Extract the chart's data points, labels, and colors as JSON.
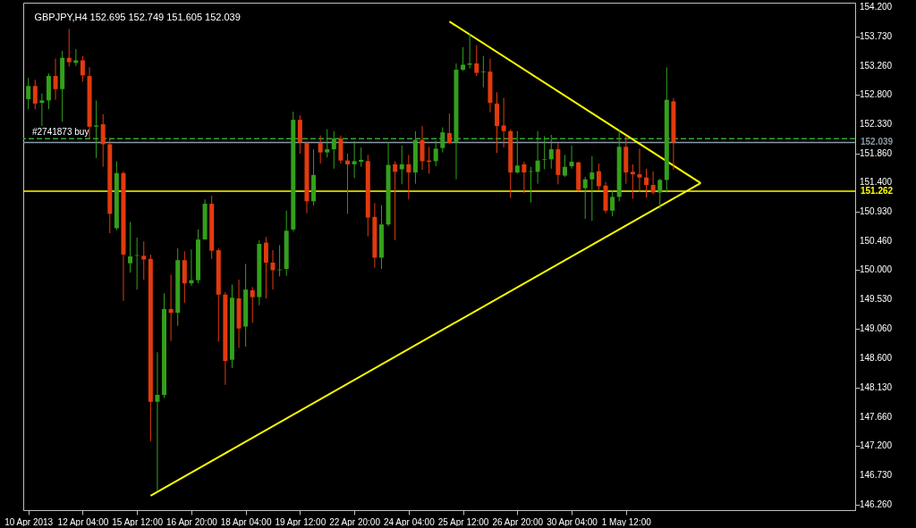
{
  "chart_data": {
    "type": "candlestick",
    "title": "GBPJPY,H4  152.695 152.749 151.605 152.039",
    "categories": [
      "10 Apr 2013",
      null,
      null,
      null,
      null,
      null,
      null,
      null,
      "12 Apr 04:00",
      null,
      null,
      null,
      null,
      null,
      null,
      null,
      "15 Apr 12:00",
      null,
      null,
      null,
      null,
      null,
      null,
      null,
      "16 Apr 20:00",
      null,
      null,
      null,
      null,
      null,
      null,
      null,
      "18 Apr 04:00",
      null,
      null,
      null,
      null,
      null,
      null,
      null,
      "19 Apr 12:00",
      null,
      null,
      null,
      null,
      null,
      null,
      null,
      "22 Apr 20:00",
      null,
      null,
      null,
      null,
      null,
      null,
      null,
      "24 Apr 04:00",
      null,
      null,
      null,
      null,
      null,
      null,
      null,
      "25 Apr 12:00",
      null,
      null,
      null,
      null,
      null,
      null,
      null,
      "26 Apr 20:00",
      null,
      null,
      null,
      null,
      null,
      null,
      null,
      "30 Apr 04:00",
      null,
      null,
      null,
      null,
      null,
      null,
      null,
      "1 May 12:00",
      null,
      null,
      null,
      null,
      null,
      null,
      null,
      null,
      null,
      null,
      null,
      null,
      null,
      null,
      null,
      null,
      null,
      null,
      null,
      null,
      null,
      null,
      null,
      null,
      null,
      null,
      null,
      null,
      null,
      null,
      null,
      null,
      null
    ],
    "ohlc": [
      [
        152.73,
        153.07,
        152.57,
        152.94
      ],
      [
        152.94,
        153.04,
        152.57,
        152.66
      ],
      [
        152.67,
        152.82,
        152.3,
        152.71
      ],
      [
        152.71,
        153.14,
        152.57,
        153.1
      ],
      [
        153.1,
        153.38,
        152.72,
        152.89
      ],
      [
        152.89,
        153.5,
        152.37,
        153.39
      ],
      [
        153.39,
        153.85,
        153.25,
        153.32
      ],
      [
        153.31,
        153.53,
        153.26,
        153.35
      ],
      [
        153.35,
        153.42,
        153.01,
        153.11
      ],
      [
        153.1,
        153.24,
        152.1,
        152.29
      ],
      [
        152.29,
        152.71,
        151.79,
        152.31
      ],
      [
        152.33,
        152.49,
        151.65,
        152.01
      ],
      [
        152.01,
        152.09,
        150.59,
        150.9
      ],
      [
        150.67,
        151.74,
        150.64,
        151.55
      ],
      [
        151.55,
        151.58,
        149.51,
        150.25
      ],
      [
        150.11,
        150.77,
        149.96,
        150.22
      ],
      [
        150.23,
        150.52,
        149.69,
        150.24
      ],
      [
        150.23,
        150.46,
        149.85,
        150.17
      ],
      [
        150.18,
        150.25,
        147.27,
        147.9
      ],
      [
        147.9,
        148.69,
        146.48,
        148.01
      ],
      [
        148.01,
        149.63,
        147.96,
        149.38
      ],
      [
        149.38,
        149.93,
        148.87,
        149.32
      ],
      [
        149.32,
        150.35,
        149.11,
        150.16
      ],
      [
        150.16,
        150.3,
        149.48,
        149.79
      ],
      [
        149.79,
        150.33,
        149.75,
        149.84
      ],
      [
        149.84,
        150.65,
        149.79,
        150.49
      ],
      [
        150.49,
        151.13,
        150.49,
        151.06
      ],
      [
        151.06,
        151.19,
        150.18,
        150.31
      ],
      [
        150.32,
        150.35,
        148.86,
        149.61
      ],
      [
        149.61,
        149.65,
        148.17,
        148.55
      ],
      [
        148.57,
        149.77,
        148.44,
        149.56
      ],
      [
        149.55,
        149.85,
        148.76,
        149.07
      ],
      [
        149.1,
        150.1,
        148.78,
        149.69
      ],
      [
        149.68,
        149.73,
        149.16,
        149.57
      ],
      [
        149.57,
        150.48,
        149.44,
        150.42
      ],
      [
        150.44,
        150.53,
        149.55,
        150.12
      ],
      [
        150.12,
        150.32,
        149.69,
        150.0
      ],
      [
        150.0,
        150.4,
        149.9,
        150.01
      ],
      [
        150.02,
        150.95,
        149.91,
        150.63
      ],
      [
        150.65,
        152.53,
        150.62,
        152.4
      ],
      [
        152.4,
        152.47,
        151.86,
        152.04
      ],
      [
        152.03,
        152.05,
        150.91,
        151.1
      ],
      [
        151.1,
        151.93,
        151.03,
        151.52
      ],
      [
        152.03,
        152.15,
        151.7,
        151.88
      ],
      [
        151.88,
        152.25,
        151.8,
        151.93
      ],
      [
        151.93,
        152.22,
        151.62,
        152.1
      ],
      [
        152.1,
        152.15,
        151.7,
        151.75
      ],
      [
        151.75,
        151.86,
        150.9,
        151.69
      ],
      [
        151.69,
        152.06,
        151.47,
        151.74
      ],
      [
        151.73,
        151.96,
        151.65,
        151.76
      ],
      [
        151.74,
        151.84,
        150.54,
        150.84
      ],
      [
        150.85,
        151.07,
        150.04,
        150.2
      ],
      [
        150.2,
        151.04,
        150.02,
        150.73
      ],
      [
        150.73,
        152.04,
        150.7,
        151.68
      ],
      [
        151.69,
        151.74,
        150.48,
        151.57
      ],
      [
        151.61,
        151.99,
        151.37,
        151.69
      ],
      [
        151.69,
        151.84,
        151.13,
        151.56
      ],
      [
        151.56,
        152.22,
        151.38,
        152.08
      ],
      [
        152.08,
        152.3,
        151.6,
        151.74
      ],
      [
        151.75,
        151.97,
        151.54,
        151.73
      ],
      [
        151.74,
        152.07,
        151.66,
        151.94
      ],
      [
        151.95,
        152.28,
        151.88,
        152.2
      ],
      [
        152.19,
        152.5,
        152.02,
        152.03
      ],
      [
        152.04,
        153.3,
        151.45,
        153.2
      ],
      [
        153.2,
        153.56,
        153.18,
        153.28
      ],
      [
        153.28,
        153.77,
        153.22,
        153.3
      ],
      [
        153.3,
        153.59,
        153.1,
        153.15
      ],
      [
        153.16,
        153.42,
        152.92,
        153.17
      ],
      [
        153.17,
        153.38,
        152.52,
        152.67
      ],
      [
        152.66,
        152.84,
        151.87,
        152.3
      ],
      [
        152.31,
        152.75,
        151.96,
        152.22
      ],
      [
        152.22,
        152.25,
        151.15,
        151.56
      ],
      [
        151.56,
        152.22,
        151.54,
        151.67
      ],
      [
        151.69,
        151.73,
        151.23,
        151.56
      ],
      [
        151.57,
        151.65,
        151.08,
        151.58
      ],
      [
        151.57,
        152.22,
        151.38,
        151.75
      ],
      [
        151.76,
        152.14,
        151.61,
        151.77
      ],
      [
        151.77,
        152.16,
        151.62,
        151.93
      ],
      [
        151.93,
        152.03,
        151.37,
        151.52
      ],
      [
        151.51,
        151.84,
        151.49,
        151.65
      ],
      [
        151.66,
        151.99,
        151.62,
        151.73
      ],
      [
        151.72,
        151.73,
        151.26,
        151.28
      ],
      [
        151.31,
        151.49,
        150.82,
        151.45
      ],
      [
        151.45,
        151.82,
        150.79,
        151.56
      ],
      [
        151.58,
        151.7,
        151.28,
        151.34
      ],
      [
        151.35,
        151.41,
        150.91,
        150.95
      ],
      [
        150.95,
        151.27,
        150.86,
        151.17
      ],
      [
        151.17,
        152.25,
        151.1,
        151.97
      ],
      [
        151.97,
        152.15,
        151.38,
        151.56
      ],
      [
        151.57,
        151.69,
        151.14,
        151.53
      ],
      [
        151.53,
        151.94,
        151.25,
        151.48
      ],
      [
        151.48,
        151.62,
        151.16,
        151.36
      ],
      [
        151.36,
        151.58,
        151.21,
        151.24
      ],
      [
        151.24,
        151.46,
        150.98,
        151.44
      ],
      [
        151.44,
        153.24,
        151.24,
        152.72
      ],
      [
        152.695,
        152.749,
        151.605,
        152.039
      ],
      null,
      null,
      null,
      null,
      null,
      null,
      null,
      null,
      null,
      null,
      null,
      null,
      null,
      null,
      null,
      null,
      null,
      null,
      null,
      null,
      null,
      null,
      null,
      null,
      null,
      null
    ],
    "colors": [
      "#33a01c",
      "#e23a0e",
      "#33a01c",
      "#33a01c",
      "#e23a0e",
      "#33a01c",
      "#e23a0e",
      "#33a01c",
      "#e23a0e",
      "#e23a0e",
      "#33a01c",
      "#e23a0e",
      "#e23a0e",
      "#33a01c",
      "#e23a0e",
      "#33a01c",
      "#33a01c",
      "#e23a0e",
      "#e23a0e",
      "#33a01c",
      "#33a01c",
      "#e23a0e",
      "#33a01c",
      "#e23a0e",
      "#33a01c",
      "#33a01c",
      "#33a01c",
      "#e23a0e",
      "#e23a0e",
      "#e23a0e",
      "#33a01c",
      "#e23a0e",
      "#33a01c",
      "#e23a0e",
      "#33a01c",
      "#e23a0e",
      "#e23a0e",
      "#33a01c",
      "#33a01c",
      "#33a01c",
      "#e23a0e",
      "#e23a0e",
      "#33a01c",
      "#e23a0e",
      "#33a01c",
      "#33a01c",
      "#e23a0e",
      "#e23a0e",
      "#33a01c",
      "#33a01c",
      "#e23a0e",
      "#e23a0e",
      "#33a01c",
      "#33a01c",
      "#e23a0e",
      "#33a01c",
      "#e23a0e",
      "#33a01c",
      "#e23a0e",
      "#e23a0e",
      "#33a01c",
      "#33a01c",
      "#e23a0e",
      "#33a01c",
      "#33a01c",
      "#33a01c",
      "#e23a0e",
      "#33a01c",
      "#e23a0e",
      "#e23a0e",
      "#e23a0e",
      "#e23a0e",
      "#33a01c",
      "#e23a0e",
      "#33a01c",
      "#33a01c",
      "#33a01c",
      "#33a01c",
      "#e23a0e",
      "#33a01c",
      "#33a01c",
      "#e23a0e",
      "#33a01c",
      "#33a01c",
      "#e23a0e",
      "#e23a0e",
      "#33a01c",
      "#33a01c",
      "#e23a0e",
      "#e23a0e",
      "#e23a0e",
      "#e23a0e",
      "#e23a0e",
      "#33a01c",
      "#33a01c",
      "#e23a0e",
      null,
      null,
      null,
      null,
      null,
      null,
      null,
      null,
      null,
      null,
      null,
      null,
      null,
      null,
      null,
      null,
      null,
      null,
      null,
      null,
      null,
      null,
      null,
      null,
      null,
      null
    ],
    "series": [
      {
        "type": "line",
        "color": "#ffff00",
        "values": [
          null,
          null,
          null,
          null,
          null,
          null,
          null,
          null,
          null,
          null,
          null,
          null,
          null,
          null,
          null,
          null,
          null,
          null,
          null,
          null,
          null,
          null,
          null,
          null,
          null,
          null,
          null,
          null,
          null,
          null,
          null,
          null,
          null,
          null,
          null,
          null,
          null,
          null,
          null,
          null,
          null,
          null,
          null,
          null,
          null,
          null,
          null,
          null,
          null,
          null,
          null,
          null,
          null,
          null,
          null,
          null,
          null,
          null,
          null,
          null,
          null,
          null,
          153.97,
          null,
          null,
          null,
          null,
          null,
          null,
          null,
          null,
          null,
          null,
          null,
          null,
          null,
          null,
          null,
          null,
          null,
          null,
          null,
          null,
          null,
          null,
          null,
          null,
          null,
          null,
          null,
          null,
          null,
          null,
          null,
          null,
          null,
          null,
          null,
          null,
          151.39,
          null,
          null,
          null,
          null,
          null,
          null,
          null,
          null,
          null,
          null,
          null,
          null,
          null,
          null,
          null,
          null,
          null,
          null,
          null,
          null,
          null,
          null
        ]
      },
      {
        "type": "line",
        "color": "#ffff00",
        "values": [
          null,
          null,
          null,
          null,
          null,
          null,
          null,
          null,
          null,
          null,
          null,
          null,
          null,
          null,
          null,
          null,
          null,
          null,
          146.4,
          null,
          null,
          null,
          null,
          null,
          null,
          null,
          null,
          null,
          null,
          null,
          null,
          null,
          null,
          null,
          null,
          null,
          null,
          null,
          null,
          null,
          null,
          null,
          null,
          null,
          null,
          null,
          null,
          null,
          null,
          null,
          null,
          null,
          null,
          null,
          null,
          null,
          null,
          null,
          null,
          null,
          null,
          null,
          null,
          null,
          null,
          null,
          null,
          null,
          null,
          null,
          null,
          null,
          null,
          null,
          null,
          null,
          null,
          null,
          null,
          null,
          null,
          null,
          null,
          null,
          null,
          null,
          null,
          null,
          null,
          null,
          null,
          null,
          null,
          null,
          null,
          null,
          null,
          null,
          null,
          151.39,
          null,
          null,
          null,
          null,
          null,
          null,
          null,
          null,
          null,
          null,
          null,
          null,
          null,
          null,
          null,
          null,
          null,
          null,
          null,
          null,
          null,
          null
        ]
      }
    ],
    "ylim": [
      146.17,
      154.27
    ],
    "yticks": [
      {
        "value": 154.2,
        "label": "154.200"
      },
      {
        "value": 153.73,
        "label": "153.730"
      },
      {
        "value": 153.26,
        "label": "153.260"
      },
      {
        "value": 152.8,
        "label": "152.800"
      },
      {
        "value": 152.33,
        "label": "152.330"
      },
      {
        "value": 151.86,
        "label": "151.860"
      },
      {
        "value": 151.4,
        "label": "151.400"
      },
      {
        "value": 150.93,
        "label": "150.930"
      },
      {
        "value": 150.46,
        "label": "150.460"
      },
      {
        "value": 150,
        "label": "150.000"
      },
      {
        "value": 149.53,
        "label": "149.530"
      },
      {
        "value": 149.06,
        "label": "149.060"
      },
      {
        "value": 148.6,
        "label": "148.600"
      },
      {
        "value": 148.13,
        "label": "148.130"
      },
      {
        "value": 147.66,
        "label": "147.660"
      },
      {
        "value": 147.2,
        "label": "147.200"
      },
      {
        "value": 146.73,
        "label": "146.730"
      },
      {
        "value": 146.26,
        "label": "146.260"
      }
    ],
    "ref_lines": [
      {
        "axis": "y",
        "value": 152.1,
        "label": "#2741873 buy",
        "color": "#2ea82e",
        "line_style": "dashed"
      },
      {
        "axis": "y",
        "value": 152.039,
        "label": "152.039",
        "color": "#8c98a4",
        "line_style": "solid"
      },
      {
        "axis": "y",
        "value": 151.262,
        "label": "151.262",
        "color": "#ffff00",
        "line_style": "solid"
      }
    ]
  }
}
